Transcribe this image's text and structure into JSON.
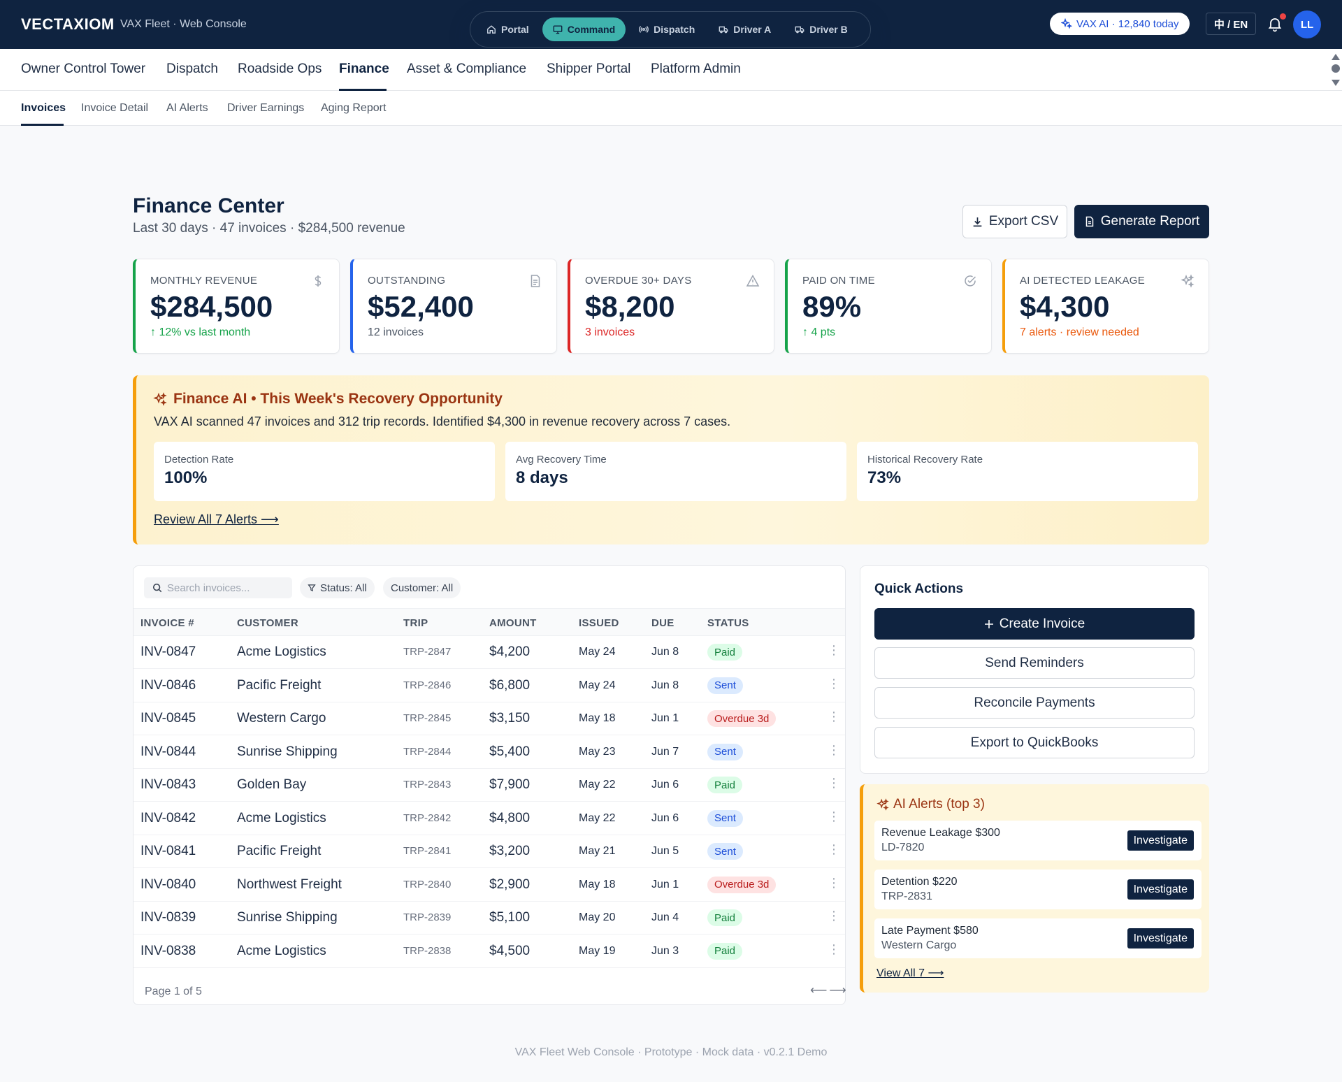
{
  "topbar": {
    "brand": "VECTAXIOM",
    "subtitle": "VAX Fleet · Web Console",
    "portal_nav": [
      {
        "label": "Portal",
        "icon": "home-icon",
        "active": false
      },
      {
        "label": "Command",
        "icon": "monitor-icon",
        "active": true
      },
      {
        "label": "Dispatch",
        "icon": "radio-icon",
        "active": false
      },
      {
        "label": "Driver A",
        "icon": "truck-icon",
        "active": false
      },
      {
        "label": "Driver B",
        "icon": "truck-icon",
        "active": false
      }
    ],
    "ai_chip": "VAX AI · 12,840 today",
    "lang": "中 / EN",
    "avatar": "LL",
    "colors": {
      "bar": "#0f2340",
      "active_pill": "#3fb3ad",
      "notification_dot": "#ef4444",
      "avatar": "#2563eb"
    }
  },
  "main_nav": {
    "items": [
      "Owner Control Tower",
      "Dispatch",
      "Roadside Ops",
      "Finance",
      "Asset & Compliance",
      "Shipper Portal",
      "Platform Admin"
    ],
    "active": "Finance"
  },
  "sub_nav": {
    "items": [
      "Invoices",
      "Invoice Detail",
      "AI Alerts",
      "Driver Earnings",
      "Aging Report"
    ],
    "active": "Invoices"
  },
  "header": {
    "title": "Finance Center",
    "subtitle": "Last 30 days · 47 invoices · $284,500 revenue",
    "export_label": "Export CSV",
    "report_label": "Generate Report"
  },
  "kpis": [
    {
      "label": "MONTHLY REVENUE",
      "value": "$284,500",
      "note": "↑ 12% vs last month",
      "icon": "dollar-icon",
      "accent": "#16a34a",
      "note_color": "#16a34a"
    },
    {
      "label": "OUTSTANDING",
      "value": "$52,400",
      "note": "12 invoices",
      "icon": "document-icon",
      "accent": "#2563eb",
      "note_color": "#4b5563"
    },
    {
      "label": "OVERDUE 30+ DAYS",
      "value": "$8,200",
      "note": "3 invoices",
      "icon": "warning-icon",
      "accent": "#dc2626",
      "note_color": "#dc2626"
    },
    {
      "label": "PAID ON TIME",
      "value": "89%",
      "note": "↑ 4 pts",
      "icon": "check-circle-icon",
      "accent": "#16a34a",
      "note_color": "#16a34a"
    },
    {
      "label": "AI DETECTED LEAKAGE",
      "value": "$4,300",
      "note": "7 alerts · review needed",
      "icon": "sparkle-icon",
      "accent": "#f59e0b",
      "note_color": "#ea580c"
    }
  ],
  "ai_banner": {
    "title": "Finance AI • This Week's Recovery Opportunity",
    "description": "VAX AI scanned 47 invoices and 312 trip records. Identified $4,300 in revenue recovery across 7 cases.",
    "stats": [
      {
        "label": "Detection Rate",
        "value": "100%"
      },
      {
        "label": "Avg Recovery Time",
        "value": "8 days"
      },
      {
        "label": "Historical Recovery Rate",
        "value": "73%"
      }
    ],
    "link": "Review All 7 Alerts ⟶"
  },
  "invoices": {
    "search_placeholder": "Search invoices...",
    "filters": {
      "status": "Status: All",
      "customer": "Customer: All"
    },
    "columns": [
      "INVOICE #",
      "CUSTOMER",
      "TRIP",
      "AMOUNT",
      "ISSUED",
      "DUE",
      "STATUS"
    ],
    "rows": [
      {
        "id": "INV-0847",
        "customer": "Acme Logistics",
        "trip": "TRP-2847",
        "amount": "$4,200",
        "issued": "May 24",
        "due": "Jun 8",
        "status": "Paid",
        "status_kind": "paid"
      },
      {
        "id": "INV-0846",
        "customer": "Pacific Freight",
        "trip": "TRP-2846",
        "amount": "$6,800",
        "issued": "May 24",
        "due": "Jun 8",
        "status": "Sent",
        "status_kind": "sent"
      },
      {
        "id": "INV-0845",
        "customer": "Western Cargo",
        "trip": "TRP-2845",
        "amount": "$3,150",
        "issued": "May 18",
        "due": "Jun 1",
        "status": "Overdue 3d",
        "status_kind": "overdue"
      },
      {
        "id": "INV-0844",
        "customer": "Sunrise Shipping",
        "trip": "TRP-2844",
        "amount": "$5,400",
        "issued": "May 23",
        "due": "Jun 7",
        "status": "Sent",
        "status_kind": "sent"
      },
      {
        "id": "INV-0843",
        "customer": "Golden Bay",
        "trip": "TRP-2843",
        "amount": "$7,900",
        "issued": "May 22",
        "due": "Jun 6",
        "status": "Paid",
        "status_kind": "paid"
      },
      {
        "id": "INV-0842",
        "customer": "Acme Logistics",
        "trip": "TRP-2842",
        "amount": "$4,800",
        "issued": "May 22",
        "due": "Jun 6",
        "status": "Sent",
        "status_kind": "sent"
      },
      {
        "id": "INV-0841",
        "customer": "Pacific Freight",
        "trip": "TRP-2841",
        "amount": "$3,200",
        "issued": "May 21",
        "due": "Jun 5",
        "status": "Sent",
        "status_kind": "sent"
      },
      {
        "id": "INV-0840",
        "customer": "Northwest Freight",
        "trip": "TRP-2840",
        "amount": "$2,900",
        "issued": "May 18",
        "due": "Jun 1",
        "status": "Overdue 3d",
        "status_kind": "overdue"
      },
      {
        "id": "INV-0839",
        "customer": "Sunrise Shipping",
        "trip": "TRP-2839",
        "amount": "$5,100",
        "issued": "May 20",
        "due": "Jun 4",
        "status": "Paid",
        "status_kind": "paid"
      },
      {
        "id": "INV-0838",
        "customer": "Acme Logistics",
        "trip": "TRP-2838",
        "amount": "$4,500",
        "issued": "May 19",
        "due": "Jun 3",
        "status": "Paid",
        "status_kind": "paid"
      }
    ],
    "pager": "Page 1 of 5",
    "pager_arrows": "⟵⟶"
  },
  "quick_actions": {
    "title": "Quick Actions",
    "buttons": [
      "Create Invoice",
      "Send Reminders",
      "Reconcile Payments",
      "Export to QuickBooks"
    ]
  },
  "ai_alerts": {
    "title": "AI Alerts (top 3)",
    "items": [
      {
        "name": "Revenue Leakage $300",
        "sub": "LD-7820",
        "action": "Investigate"
      },
      {
        "name": "Detention $220",
        "sub": "TRP-2831",
        "action": "Investigate"
      },
      {
        "name": "Late Payment $580",
        "sub": "Western Cargo",
        "action": "Investigate"
      }
    ],
    "link": "View All 7 ⟶"
  },
  "footer": "VAX Fleet Web Console · Prototype · Mock data · v0.2.1 Demo"
}
